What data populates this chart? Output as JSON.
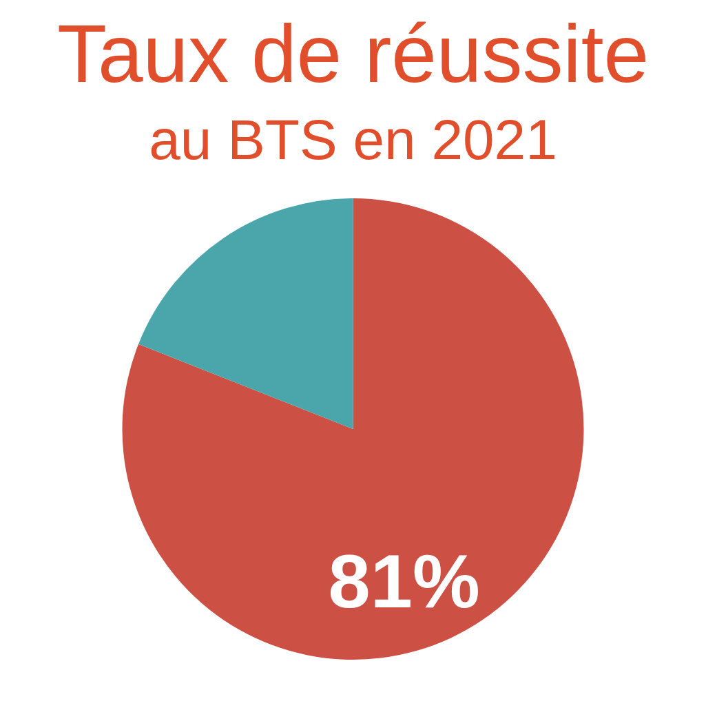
{
  "chart_data": {
    "type": "pie",
    "title": "Taux de réussite",
    "subtitle": "au BTS en 2021",
    "categories": [
      null,
      null
    ],
    "values": [
      81,
      19
    ],
    "colors": [
      "#cc5044",
      "#4aa6ab"
    ],
    "value_labels": [
      "81%",
      null
    ]
  }
}
